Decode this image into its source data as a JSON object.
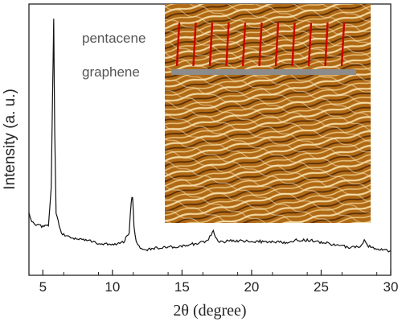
{
  "chart_data": {
    "type": "line",
    "xlabel": "2θ (degree)",
    "ylabel": "Intensity (a. u.)",
    "xlim": [
      4,
      30
    ],
    "xticks": [
      5,
      10,
      15,
      20,
      25,
      30
    ],
    "y_tick_labels": "none",
    "grid": false,
    "legend": "none",
    "series": [
      {
        "color": "#111111",
        "x": [
          4.0,
          4.2,
          4.5,
          5.0,
          5.4,
          5.6,
          5.7,
          5.78,
          5.85,
          5.95,
          6.1,
          6.25,
          6.5,
          7.0,
          8.0,
          9.0,
          10.0,
          10.8,
          11.2,
          11.35,
          11.45,
          11.55,
          11.7,
          12.0,
          12.5,
          13.0,
          14.0,
          15.0,
          16.0,
          16.8,
          17.1,
          17.25,
          17.4,
          17.7,
          18.5,
          20.0,
          22.0,
          23.0,
          23.2,
          23.4,
          24.0,
          25.0,
          26.0,
          27.0,
          27.8,
          28.1,
          28.4,
          29.0,
          30.0
        ],
        "y": [
          0.2,
          0.165,
          0.155,
          0.145,
          0.15,
          0.3,
          0.7,
          1.0,
          0.55,
          0.2,
          0.17,
          0.13,
          0.11,
          0.1,
          0.09,
          0.075,
          0.07,
          0.08,
          0.12,
          0.25,
          0.27,
          0.14,
          0.08,
          0.055,
          0.05,
          0.055,
          0.06,
          0.065,
          0.075,
          0.085,
          0.11,
          0.13,
          0.1,
          0.08,
          0.085,
          0.085,
          0.08,
          0.08,
          0.095,
          0.085,
          0.09,
          0.08,
          0.07,
          0.06,
          0.06,
          0.085,
          0.065,
          0.05,
          0.045
        ]
      }
    ]
  },
  "inset": {
    "labels": {
      "pentacene": "pentacene",
      "graphene": "graphene"
    },
    "colors": {
      "molecule": "#cc0000",
      "substrate": "#8c8c8c",
      "afm_base": "#b06a16",
      "afm_highlight": "#f3d9a0",
      "afm_shadow": "#5a2e06"
    }
  }
}
